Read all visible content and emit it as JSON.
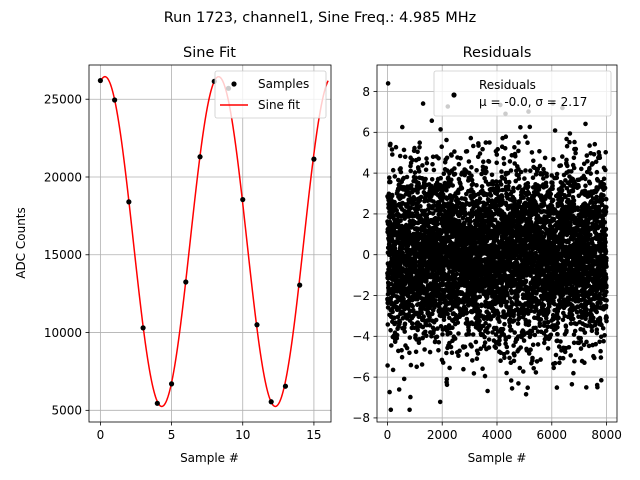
{
  "figure": {
    "suptitle": "Run 1723, channel1, Sine Freq.: 4.985 MHz"
  },
  "chart_data": [
    {
      "type": "line",
      "title": "Sine Fit",
      "xlabel": "Sample #",
      "ylabel": "ADC Counts",
      "xlim": [
        -0.8,
        16.2
      ],
      "ylim": [
        4250,
        27200
      ],
      "xticks": [
        0,
        5,
        10,
        15
      ],
      "yticks": [
        5000,
        10000,
        15000,
        20000,
        25000
      ],
      "grid": true,
      "legend_position": "upper-right",
      "series": [
        {
          "name": "Samples",
          "kind": "scatter",
          "color": "#000000",
          "x": [
            0,
            1,
            2,
            3,
            4,
            5,
            6,
            7,
            8,
            9,
            10,
            11,
            12,
            13,
            14,
            15
          ],
          "y": [
            26200,
            24950,
            18400,
            10300,
            5450,
            6700,
            13250,
            21300,
            26150,
            25700,
            18550,
            10500,
            5550,
            6550,
            13050,
            21150
          ]
        },
        {
          "name": "Sine fit",
          "kind": "line",
          "color": "#ff0000",
          "model": {
            "offset": 15850,
            "amplitude": 10600,
            "period": 7.98,
            "peak_at": 0.32,
            "x_start": 0,
            "x_end": 16
          }
        }
      ]
    },
    {
      "type": "scatter",
      "title": "Residuals",
      "xlabel": "Sample #",
      "xlim": [
        -380,
        8380
      ],
      "ylim": [
        -8.2,
        9.3
      ],
      "xticks": [
        0,
        2000,
        4000,
        6000,
        8000
      ],
      "yticks": [
        -8,
        -6,
        -4,
        -2,
        0,
        2,
        4,
        6,
        8
      ],
      "grid": true,
      "legend_position": "upper-right",
      "series": [
        {
          "name": "Residuals",
          "color": "#000000",
          "stats_label": "μ = -0.0, σ = 2.17",
          "distribution": {
            "mean": 0.0,
            "std": 2.17,
            "n_samples": 8000,
            "max": 8.4,
            "min": -7.6
          }
        }
      ]
    }
  ]
}
